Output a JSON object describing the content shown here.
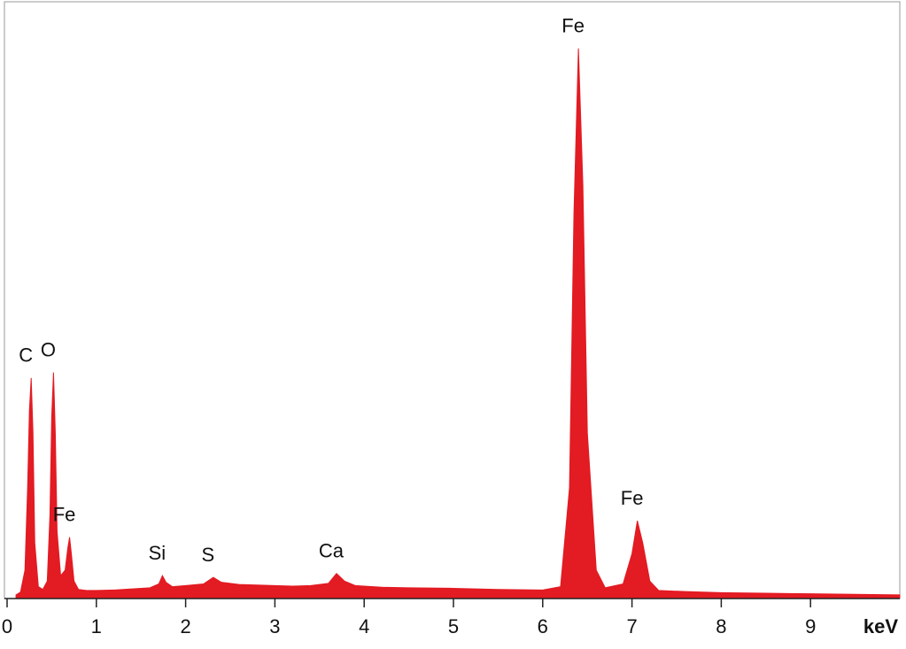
{
  "chart_data": {
    "type": "area",
    "x_label": "keV",
    "x": [
      0.1,
      0.15,
      0.2,
      0.23,
      0.25,
      0.27,
      0.29,
      0.31,
      0.35,
      0.4,
      0.45,
      0.48,
      0.5,
      0.52,
      0.54,
      0.56,
      0.6,
      0.65,
      0.68,
      0.7,
      0.72,
      0.75,
      0.8,
      0.9,
      1.0,
      1.2,
      1.4,
      1.6,
      1.7,
      1.74,
      1.78,
      1.85,
      2.0,
      2.2,
      2.31,
      2.4,
      2.6,
      2.8,
      3.0,
      3.2,
      3.4,
      3.6,
      3.69,
      3.78,
      3.9,
      4.2,
      4.5,
      5.0,
      5.5,
      6.0,
      6.2,
      6.3,
      6.35,
      6.4,
      6.45,
      6.5,
      6.6,
      6.7,
      6.9,
      7.0,
      7.06,
      7.12,
      7.2,
      7.3,
      7.6,
      8.0,
      8.5,
      9.0,
      9.5,
      10.0
    ],
    "values": [
      0.5,
      1,
      5,
      20,
      34,
      40,
      30,
      10,
      2,
      1.5,
      3,
      15,
      33,
      41,
      30,
      12,
      4,
      5,
      9,
      11,
      8,
      3,
      1.5,
      1.3,
      1.3,
      1.4,
      1.6,
      1.8,
      2.5,
      4,
      2.8,
      2,
      2.2,
      2.5,
      3.7,
      2.8,
      2.4,
      2.3,
      2.2,
      2.1,
      2.2,
      2.6,
      4.4,
      3,
      2.2,
      1.9,
      1.8,
      1.7,
      1.5,
      1.4,
      2,
      20,
      70,
      100,
      75,
      30,
      5,
      1.8,
      2.5,
      8,
      14,
      10,
      3,
      1.3,
      1.1,
      0.9,
      0.8,
      0.7,
      0.6,
      0.5
    ],
    "color": "#e31b23",
    "xlim": [
      0,
      10
    ],
    "xticks": [
      0,
      1,
      2,
      3,
      4,
      5,
      6,
      7,
      8,
      9
    ],
    "ylim": [
      0,
      108
    ],
    "annotations": [
      {
        "label": "C",
        "x": 0.27
      },
      {
        "label": "O",
        "x": 0.52
      },
      {
        "label": "Fe",
        "x": 0.7
      },
      {
        "label": "Si",
        "x": 1.74
      },
      {
        "label": "S",
        "x": 2.31
      },
      {
        "label": "Ca",
        "x": 3.69
      },
      {
        "label": "Fe",
        "x": 6.4
      },
      {
        "label": "Fe",
        "x": 7.06
      }
    ]
  }
}
